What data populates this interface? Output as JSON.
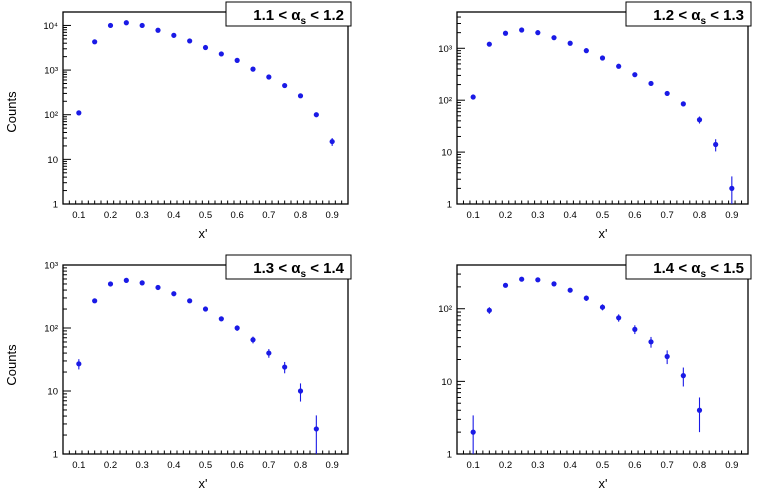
{
  "chart_data": [
    {
      "type": "scatter",
      "title_parts": [
        "1.1 < ",
        "α",
        "s",
        " < 1.2"
      ],
      "xlabel": "x'",
      "ylabel": "Counts",
      "xlim": [
        0.05,
        0.95
      ],
      "ylim": [
        1,
        20000
      ],
      "yscale": "log",
      "xticks": [
        0.1,
        0.2,
        0.3,
        0.4,
        0.5,
        0.6,
        0.7,
        0.8,
        0.9
      ],
      "yticks": [
        1,
        10,
        100,
        1000,
        10000
      ],
      "yticklabels": [
        "1",
        "10",
        "10²",
        "10³",
        "10⁴"
      ],
      "series": [
        {
          "color": "#1a1ae6",
          "x": [
            0.1,
            0.15,
            0.2,
            0.25,
            0.3,
            0.35,
            0.4,
            0.45,
            0.5,
            0.55,
            0.6,
            0.65,
            0.7,
            0.75,
            0.8,
            0.85,
            0.9
          ],
          "y": [
            110,
            4300,
            10000,
            11500,
            10000,
            7800,
            6000,
            4500,
            3200,
            2300,
            1650,
            1050,
            700,
            450,
            265,
            100,
            25
          ],
          "yerr": [
            8,
            65,
            100,
            110,
            100,
            90,
            80,
            70,
            60,
            50,
            40,
            33,
            27,
            22,
            17,
            10,
            5
          ]
        }
      ]
    },
    {
      "type": "scatter",
      "title_parts": [
        "1.2 < ",
        "α",
        "s",
        " < 1.3"
      ],
      "xlabel": "x'",
      "ylabel": "",
      "xlim": [
        0.05,
        0.95
      ],
      "ylim": [
        1,
        5000
      ],
      "yscale": "log",
      "xticks": [
        0.1,
        0.2,
        0.3,
        0.4,
        0.5,
        0.6,
        0.7,
        0.8,
        0.9
      ],
      "yticks": [
        1,
        10,
        100,
        1000
      ],
      "yticklabels": [
        "1",
        "10",
        "10²",
        "10³"
      ],
      "series": [
        {
          "color": "#1a1ae6",
          "x": [
            0.1,
            0.15,
            0.2,
            0.25,
            0.3,
            0.35,
            0.4,
            0.45,
            0.5,
            0.55,
            0.6,
            0.65,
            0.7,
            0.75,
            0.8,
            0.85,
            0.9
          ],
          "y": [
            115,
            1200,
            1950,
            2250,
            2000,
            1600,
            1250,
            900,
            650,
            450,
            310,
            210,
            135,
            85,
            42,
            14,
            2
          ],
          "yerr": [
            11,
            35,
            44,
            47,
            45,
            40,
            35,
            30,
            25,
            21,
            18,
            15,
            12,
            9,
            6.5,
            3.7,
            1.4
          ]
        }
      ]
    },
    {
      "type": "scatter",
      "title_parts": [
        "1.3 < ",
        "α",
        "s",
        " < 1.4"
      ],
      "xlabel": "x'",
      "ylabel": "Counts",
      "xlim": [
        0.05,
        0.95
      ],
      "ylim": [
        1,
        1000
      ],
      "yscale": "log",
      "xticks": [
        0.1,
        0.2,
        0.3,
        0.4,
        0.5,
        0.6,
        0.7,
        0.8,
        0.9
      ],
      "yticks": [
        1,
        10,
        100,
        1000
      ],
      "yticklabels": [
        "1",
        "10",
        "10²",
        "10³"
      ],
      "series": [
        {
          "color": "#1a1ae6",
          "x": [
            0.1,
            0.15,
            0.2,
            0.25,
            0.3,
            0.35,
            0.4,
            0.45,
            0.5,
            0.55,
            0.6,
            0.65,
            0.7,
            0.75,
            0.8,
            0.85
          ],
          "y": [
            27,
            270,
            500,
            570,
            520,
            440,
            350,
            270,
            200,
            140,
            100,
            65,
            40,
            24,
            10,
            2.5
          ],
          "yerr": [
            5,
            16,
            22,
            24,
            23,
            21,
            19,
            16,
            14,
            12,
            10,
            8,
            6.3,
            4.9,
            3.2,
            1.6
          ]
        }
      ]
    },
    {
      "type": "scatter",
      "title_parts": [
        "1.4 < ",
        "α",
        "s",
        " < 1.5"
      ],
      "xlabel": "x'",
      "ylabel": "",
      "xlim": [
        0.05,
        0.95
      ],
      "ylim": [
        1,
        400
      ],
      "yscale": "log",
      "xticks": [
        0.1,
        0.2,
        0.3,
        0.4,
        0.5,
        0.6,
        0.7,
        0.8,
        0.9
      ],
      "yticks": [
        1,
        10,
        100
      ],
      "yticklabels": [
        "1",
        "10",
        "10²"
      ],
      "series": [
        {
          "color": "#1a1ae6",
          "x": [
            0.1,
            0.15,
            0.2,
            0.25,
            0.3,
            0.35,
            0.4,
            0.45,
            0.5,
            0.55,
            0.6,
            0.65,
            0.7,
            0.75,
            0.8
          ],
          "y": [
            2,
            95,
            210,
            255,
            250,
            220,
            180,
            140,
            105,
            75,
            52,
            35,
            22,
            12,
            4
          ],
          "yerr": [
            1.4,
            10,
            14,
            16,
            16,
            15,
            13,
            12,
            10,
            8.7,
            7.2,
            5.9,
            4.7,
            3.5,
            2
          ]
        }
      ]
    }
  ]
}
